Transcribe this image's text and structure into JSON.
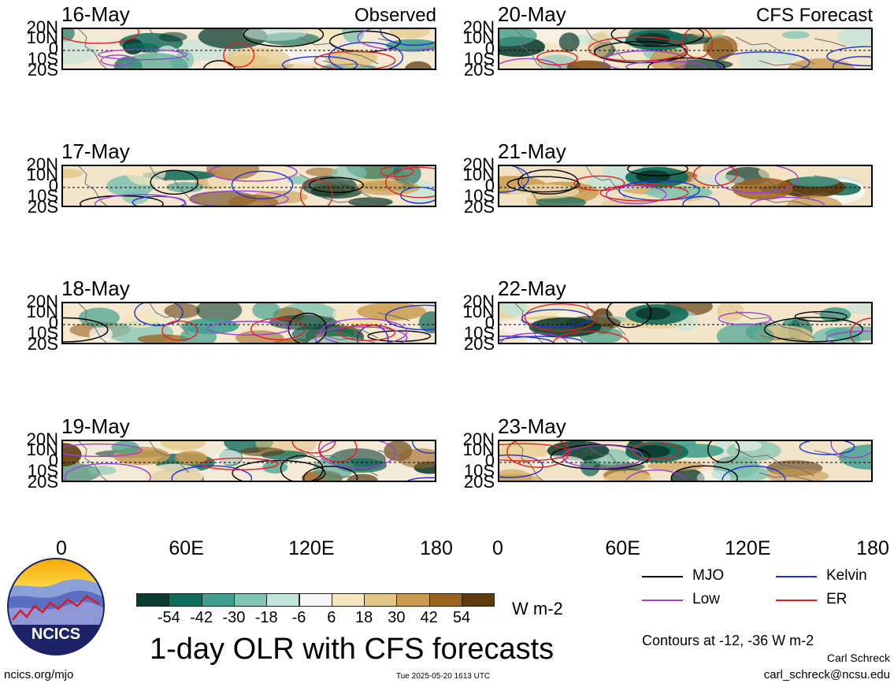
{
  "panels": [
    {
      "date": "16-May",
      "source": "Observed",
      "column": 0,
      "row": 0,
      "bg": "#f4e9d2"
    },
    {
      "date": "17-May",
      "source": "",
      "column": 0,
      "row": 1,
      "bg": "#f3e6cc"
    },
    {
      "date": "18-May",
      "source": "",
      "column": 0,
      "row": 2,
      "bg": "#f4e8cf"
    },
    {
      "date": "19-May",
      "source": "",
      "column": 0,
      "row": 3,
      "bg": "#f3ead8"
    },
    {
      "date": "20-May",
      "source": "CFS Forecast",
      "column": 1,
      "row": 0,
      "bg": "#f2e5ca"
    },
    {
      "date": "21-May",
      "source": "",
      "column": 1,
      "row": 1,
      "bg": "#f1e2c4"
    },
    {
      "date": "22-May",
      "source": "",
      "column": 1,
      "row": 2,
      "bg": "#f3e6cb"
    },
    {
      "date": "23-May",
      "source": "",
      "column": 1,
      "row": 3,
      "bg": "#f2e4c8"
    }
  ],
  "axes": {
    "lat_labels": [
      "20N",
      "10N",
      "0",
      "10S",
      "20S"
    ],
    "lon_labels": [
      "0",
      "60E",
      "120E",
      "180"
    ],
    "lat_range": [
      -20,
      20
    ],
    "lon_range": [
      0,
      180
    ]
  },
  "colorbar": {
    "colors": [
      "#0b3b2e",
      "#0f6b5a",
      "#3f9e8c",
      "#7fc4b2",
      "#c2e4da",
      "#f7f7f7",
      "#f6e6c0",
      "#e3c684",
      "#c99a4e",
      "#9c6220",
      "#5e3a0c"
    ],
    "labels": [
      "-54",
      "-42",
      "-30",
      "-18",
      "-6",
      "6",
      "18",
      "30",
      "42",
      "54"
    ],
    "units": "W m-2"
  },
  "legend": [
    {
      "label": "MJO",
      "color": "#000000"
    },
    {
      "label": "Kelvin",
      "color": "#1f2fd6"
    },
    {
      "label": "Low",
      "color": "#9b3fd6"
    },
    {
      "label": "ER",
      "color": "#e02020"
    }
  ],
  "contours_note": "Contours at -12, -36 W m-2",
  "title": "1-day OLR with CFS forecasts",
  "logo_text": "NCICS",
  "url": "ncics.org/mjo",
  "timestamp": "Tue 2025-05-20 1613 UTC",
  "author": "Carl Schreck",
  "email": "carl_schreck@ncsu.edu",
  "chart_data": {
    "type": "heatmap",
    "title": "1-day OLR with CFS forecasts",
    "panels": [
      "16-May",
      "17-May",
      "18-May",
      "19-May",
      "20-May",
      "21-May",
      "22-May",
      "23-May"
    ],
    "panel_sources": {
      "Observed": [
        "16-May",
        "17-May",
        "18-May",
        "19-May"
      ],
      "CFS Forecast": [
        "20-May",
        "21-May",
        "22-May",
        "23-May"
      ]
    },
    "x": {
      "label": "",
      "ticks": [
        "0",
        "60E",
        "120E",
        "180"
      ],
      "range": [
        0,
        180
      ]
    },
    "y": {
      "label": "",
      "ticks": [
        "20N",
        "10N",
        "0",
        "10S",
        "20S"
      ],
      "range": [
        -20,
        20
      ]
    },
    "color_scale": {
      "levels": [
        -54,
        -42,
        -30,
        -18,
        -6,
        6,
        18,
        30,
        42,
        54
      ],
      "units": "W m-2"
    },
    "contour_series": [
      "MJO",
      "Kelvin",
      "Low",
      "ER"
    ],
    "contour_levels": [
      -12,
      -36
    ],
    "grid": false
  }
}
